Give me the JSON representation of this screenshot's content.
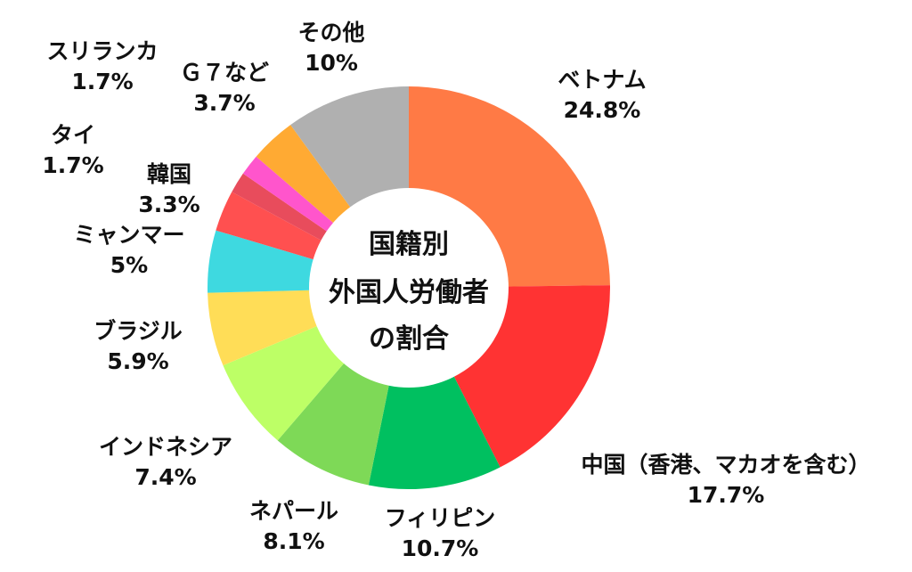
{
  "chart_data": {
    "type": "pie",
    "title_lines": [
      "国籍別",
      "外国人労働者",
      "の割合"
    ],
    "slices": [
      {
        "name": "ベトナム",
        "value": 24.8,
        "label": "24.8%",
        "color": "#FF7A45"
      },
      {
        "name": "中国（香港、マカオを含む）",
        "value": 17.7,
        "label": "17.7%",
        "color": "#FF3333"
      },
      {
        "name": "フィリピン",
        "value": 10.7,
        "label": "10.7%",
        "color": "#00C060"
      },
      {
        "name": "ネパール",
        "value": 8.1,
        "label": "8.1%",
        "color": "#7ED957"
      },
      {
        "name": "インドネシア",
        "value": 7.4,
        "label": "7.4%",
        "color": "#BDFF66"
      },
      {
        "name": "ブラジル",
        "value": 5.9,
        "label": "5.9%",
        "color": "#FFDD57"
      },
      {
        "name": "ミャンマー",
        "value": 5.0,
        "label": "5%",
        "color": "#3ED9E0"
      },
      {
        "name": "韓国",
        "value": 3.3,
        "label": "3.3%",
        "color": "#FF5050"
      },
      {
        "name": "タイ",
        "value": 1.7,
        "label": "1.7%",
        "color": "#E84C5C"
      },
      {
        "name": "スリランカ",
        "value": 1.7,
        "label": "1.7%",
        "color": "#FF55CC"
      },
      {
        "name": "Ｇ７など",
        "value": 3.7,
        "label": "3.7%",
        "color": "#FFAA33"
      },
      {
        "name": "その他",
        "value": 10.0,
        "label": "10%",
        "color": "#B0B0B0"
      }
    ]
  }
}
